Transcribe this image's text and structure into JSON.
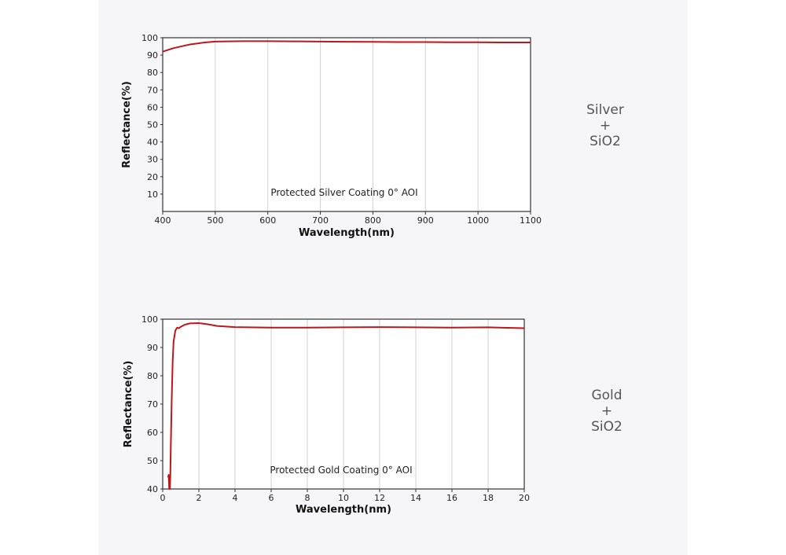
{
  "chart_data": [
    {
      "type": "line",
      "id": "silver",
      "xlabel": "Wavelength(nm)",
      "ylabel": "Reflectance(%)",
      "annotation": "Protected Silver Coating  0°  AOI",
      "xlim": [
        400,
        1100
      ],
      "ylim": [
        0,
        100
      ],
      "xticks": [
        400,
        500,
        600,
        700,
        800,
        900,
        1000,
        1100
      ],
      "yticks": [
        10,
        20,
        30,
        40,
        50,
        60,
        70,
        80,
        90,
        100
      ],
      "grid": "vertical",
      "line_color": "#c0161b",
      "x": [
        400,
        420,
        450,
        480,
        500,
        550,
        600,
        650,
        700,
        750,
        800,
        850,
        900,
        950,
        1000,
        1050,
        1100
      ],
      "y": [
        92,
        94,
        96,
        97.3,
        97.8,
        98,
        98,
        97.9,
        97.8,
        97.7,
        97.6,
        97.5,
        97.5,
        97.4,
        97.4,
        97.3,
        97.3
      ],
      "side_label": [
        "Silver",
        "+",
        "SiO2"
      ]
    },
    {
      "type": "line",
      "id": "gold",
      "xlabel": "Wavelength(nm)",
      "ylabel": "Reflectance(%)",
      "annotation": "Protected Gold Coating  0°  AOI",
      "xlim": [
        0,
        20
      ],
      "ylim": [
        40,
        100
      ],
      "xticks": [
        0,
        2,
        4,
        6,
        8,
        10,
        12,
        14,
        16,
        18,
        20
      ],
      "yticks": [
        40,
        50,
        60,
        70,
        80,
        90,
        100
      ],
      "grid": "vertical",
      "line_color": "#c0161b",
      "x": [
        0.3,
        0.33,
        0.36,
        0.38,
        0.4,
        0.42,
        0.45,
        0.5,
        0.55,
        0.6,
        0.7,
        0.8,
        0.9,
        1.0,
        1.2,
        1.5,
        2.0,
        2.5,
        3.0,
        4.0,
        6.0,
        8.0,
        10.0,
        12.0,
        14.0,
        16.0,
        18.0,
        20.0
      ],
      "y": [
        44,
        45,
        40,
        43,
        40,
        45,
        55,
        72,
        85,
        92,
        96,
        97,
        96.8,
        97.3,
        98,
        98.5,
        98.6,
        98.2,
        97.6,
        97.2,
        97.0,
        97.0,
        97.1,
        97.2,
        97.1,
        97.0,
        97.1,
        96.8
      ],
      "side_label": [
        "Gold",
        "+",
        "SiO2"
      ]
    }
  ]
}
